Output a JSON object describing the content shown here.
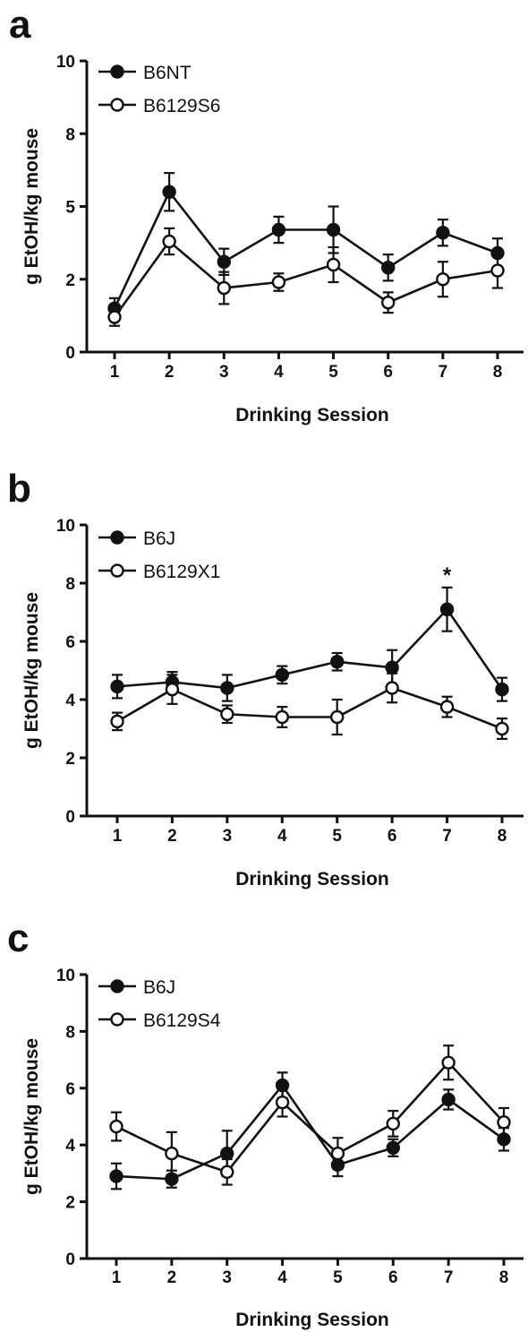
{
  "chart_data": [
    {
      "panel": "a",
      "type": "line",
      "xlabel": "Drinking Session",
      "ylabel": "g EtOH/kg mouse",
      "x": [
        1,
        2,
        3,
        4,
        5,
        6,
        7,
        8
      ],
      "xticks": [
        "1",
        "2",
        "3",
        "4",
        "5",
        "6",
        "7",
        "8"
      ],
      "yticks": [
        "0",
        "2",
        "5",
        "8",
        "10"
      ],
      "ylim": [
        0,
        10
      ],
      "grid": false,
      "legend_position": "top-left",
      "annotations": [],
      "series": [
        {
          "name": "B6NT",
          "marker": "filled-circle",
          "values": [
            1.5,
            5.5,
            3.1,
            4.2,
            4.2,
            2.9,
            4.1,
            3.4
          ],
          "errors": [
            0.35,
            0.65,
            0.45,
            0.45,
            0.8,
            0.45,
            0.45,
            0.5
          ]
        },
        {
          "name": "B6129S6",
          "marker": "open-circle",
          "values": [
            1.2,
            3.8,
            2.2,
            2.4,
            3.0,
            1.7,
            2.5,
            2.8
          ],
          "errors": [
            0.3,
            0.45,
            0.55,
            0.3,
            0.6,
            0.35,
            0.6,
            0.6
          ]
        }
      ]
    },
    {
      "panel": "b",
      "type": "line",
      "xlabel": "Drinking Session",
      "ylabel": "g EtOH/kg mouse",
      "x": [
        1,
        2,
        3,
        4,
        5,
        6,
        7,
        8
      ],
      "xticks": [
        "1",
        "2",
        "3",
        "4",
        "5",
        "6",
        "7",
        "8"
      ],
      "yticks": [
        "0",
        "2",
        "4",
        "6",
        "8",
        "10"
      ],
      "ylim": [
        0,
        10
      ],
      "grid": false,
      "legend_position": "top-left",
      "annotations": [
        {
          "text": "*",
          "x": 7,
          "y": 8.4
        }
      ],
      "series": [
        {
          "name": "B6J",
          "marker": "filled-circle",
          "values": [
            4.45,
            4.6,
            4.4,
            4.85,
            5.3,
            5.1,
            7.1,
            4.35
          ],
          "errors": [
            0.4,
            0.35,
            0.45,
            0.3,
            0.3,
            0.6,
            0.75,
            0.4
          ]
        },
        {
          "name": "B6129X1",
          "marker": "open-circle",
          "values": [
            3.25,
            4.35,
            3.5,
            3.4,
            3.4,
            4.4,
            3.75,
            3.0
          ],
          "errors": [
            0.3,
            0.5,
            0.3,
            0.35,
            0.6,
            0.5,
            0.35,
            0.35
          ]
        }
      ]
    },
    {
      "panel": "c",
      "type": "line",
      "xlabel": "Drinking Session",
      "ylabel": "g EtOH/kg mouse",
      "x": [
        1,
        2,
        3,
        4,
        5,
        6,
        7,
        8
      ],
      "xticks": [
        "1",
        "2",
        "3",
        "4",
        "5",
        "6",
        "7",
        "8"
      ],
      "yticks": [
        "0",
        "2",
        "4",
        "6",
        "8",
        "10"
      ],
      "ylim": [
        0,
        10
      ],
      "grid": false,
      "legend_position": "top-left",
      "annotations": [],
      "series": [
        {
          "name": "B6J",
          "marker": "filled-circle",
          "values": [
            2.9,
            2.8,
            3.7,
            6.1,
            3.3,
            3.9,
            5.6,
            4.2
          ],
          "errors": [
            0.45,
            0.3,
            0.8,
            0.45,
            0.4,
            0.3,
            0.35,
            0.4
          ]
        },
        {
          "name": "B6129S4",
          "marker": "open-circle",
          "values": [
            4.65,
            3.7,
            3.05,
            5.5,
            3.7,
            4.75,
            6.9,
            4.8
          ],
          "errors": [
            0.5,
            0.75,
            0.45,
            0.5,
            0.55,
            0.45,
            0.6,
            0.5
          ]
        }
      ]
    }
  ]
}
